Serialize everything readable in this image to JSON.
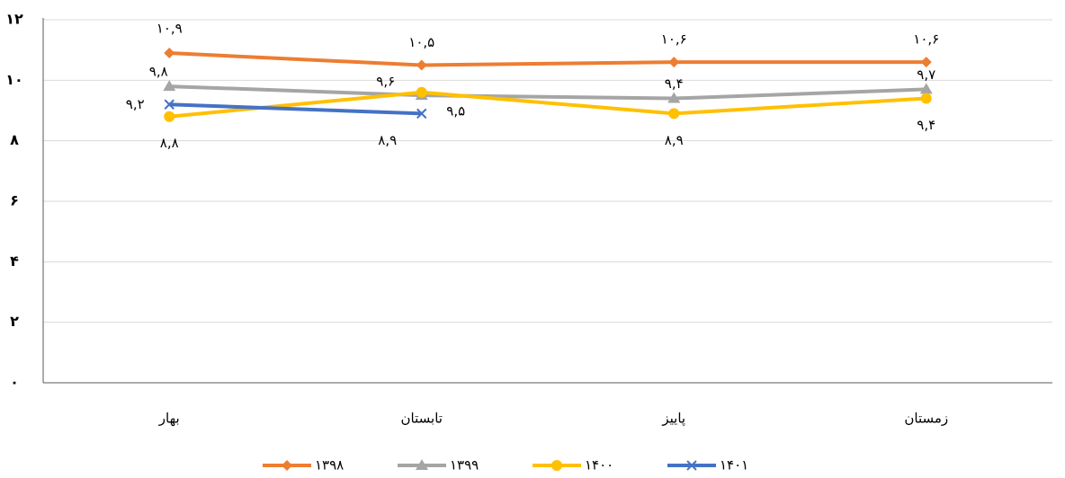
{
  "chart_data": {
    "type": "line",
    "categories": [
      "بهار",
      "تابستان",
      "پاییز",
      "زمستان"
    ],
    "series": [
      {
        "name": "۱۳۹۸",
        "color": "#ED7D31",
        "marker": "diamond",
        "values": [
          10.9,
          10.5,
          10.6,
          10.6
        ],
        "value_labels": [
          "۱۰,۹",
          "۱۰,۵",
          "۱۰,۶",
          "۱۰,۶"
        ]
      },
      {
        "name": "۱۳۹۹",
        "color": "#A5A5A5",
        "marker": "triangle",
        "values": [
          9.8,
          9.5,
          9.4,
          9.7
        ],
        "value_labels": [
          "۹,۸",
          "۹,۵",
          "۹,۴",
          "۹,۷"
        ]
      },
      {
        "name": "۱۴۰۰",
        "color": "#FFC000",
        "marker": "circle",
        "values": [
          8.8,
          9.6,
          8.9,
          9.4
        ],
        "value_labels": [
          "۸,۸",
          "۹,۶",
          "۸,۹",
          "۹,۴"
        ]
      },
      {
        "name": "۱۴۰۱",
        "color": "#4472C4",
        "marker": "x",
        "values": [
          9.2,
          8.9,
          null,
          null
        ],
        "value_labels": [
          "۹,۲",
          "۸,۹",
          null,
          null
        ]
      }
    ],
    "ylim": [
      0,
      12
    ],
    "yticks": [
      {
        "value": 0,
        "label": "۰"
      },
      {
        "value": 2,
        "label": "۲"
      },
      {
        "value": 4,
        "label": "۴"
      },
      {
        "value": 6,
        "label": "۶"
      },
      {
        "value": 8,
        "label": "۸"
      },
      {
        "value": 10,
        "label": "۱۰"
      },
      {
        "value": 12,
        "label": "۱۲"
      }
    ],
    "grid": true,
    "legend": "bottom"
  }
}
